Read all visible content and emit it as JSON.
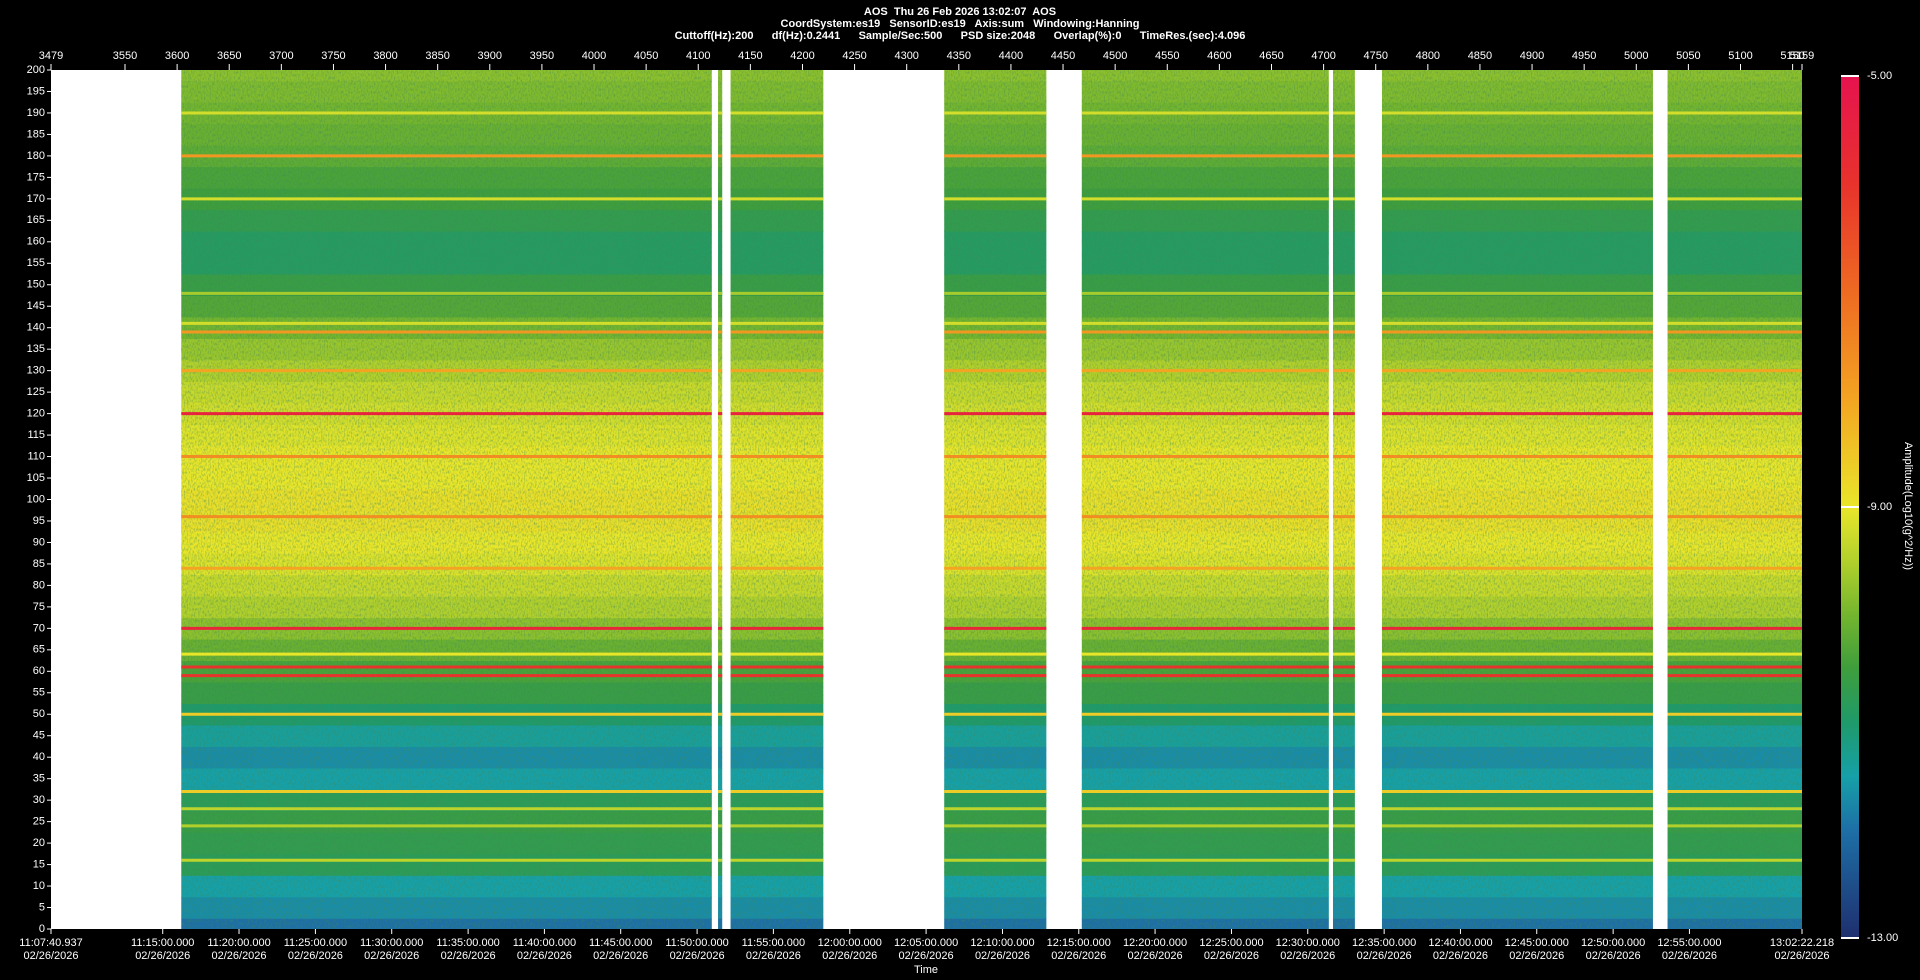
{
  "chart_data": {
    "type": "spectrogram",
    "title_lines": [
      "AOS  Thu 26 Feb 2026 13:02:07  AOS",
      "CoordSystem:es19   SensorID:es19   Axis:sum   Windowing:Hanning",
      "Cuttoff(Hz):200      df(Hz):0.2441      Sample/Sec:500      PSD size:2048      Overlap(%):0      TimeRes.(sec):4.096"
    ],
    "xlabel": "Time",
    "colorbar_label": "Amplitude(Log10(g^2/Hz))",
    "xlim": [
      3479,
      5159
    ],
    "xticks": [
      3479,
      3550,
      3600,
      3650,
      3700,
      3750,
      3800,
      3850,
      3900,
      3950,
      4000,
      4050,
      4100,
      4150,
      4200,
      4250,
      4300,
      4350,
      4400,
      4450,
      4500,
      4550,
      4600,
      4650,
      4700,
      4750,
      4800,
      4850,
      4900,
      4950,
      5000,
      5050,
      5100,
      5150,
      5159
    ],
    "x2ticks": [
      {
        "value": 3479,
        "label": "11:07:40.937"
      },
      {
        "value": 3586.2,
        "label": "11:15:00.000"
      },
      {
        "value": 3659.4,
        "label": "11:20:00.000"
      },
      {
        "value": 3732.7,
        "label": "11:25:00.000"
      },
      {
        "value": 3805.9,
        "label": "11:30:00.000"
      },
      {
        "value": 3879.2,
        "label": "11:35:00.000"
      },
      {
        "value": 3952.4,
        "label": "11:40:00.000"
      },
      {
        "value": 4025.6,
        "label": "11:45:00.000"
      },
      {
        "value": 4098.9,
        "label": "11:50:00.000"
      },
      {
        "value": 4172.1,
        "label": "11:55:00.000"
      },
      {
        "value": 4245.4,
        "label": "12:00:00.000"
      },
      {
        "value": 4318.6,
        "label": "12:05:00.000"
      },
      {
        "value": 4391.9,
        "label": "12:10:00.000"
      },
      {
        "value": 4465.1,
        "label": "12:15:00.000"
      },
      {
        "value": 4538.3,
        "label": "12:20:00.000"
      },
      {
        "value": 4611.6,
        "label": "12:25:00.000"
      },
      {
        "value": 4684.8,
        "label": "12:30:00.000"
      },
      {
        "value": 4758.1,
        "label": "12:35:00.000"
      },
      {
        "value": 4831.3,
        "label": "12:40:00.000"
      },
      {
        "value": 4904.5,
        "label": "12:45:00.000"
      },
      {
        "value": 4977.8,
        "label": "12:50:00.000"
      },
      {
        "value": 5051.0,
        "label": "12:55:00.000"
      },
      {
        "value": 5159,
        "label": "13:02:22.218"
      }
    ],
    "x2tick_dates": [
      "02/26/2026",
      "02/26/2026",
      "02/26/2026",
      "02/26/2026",
      "02/26/2026",
      "02/26/2026",
      "02/26/2026",
      "02/26/2026",
      "02/26/2026",
      "02/26/2026",
      "02/26/2026",
      "02/26/2026",
      "02/26/2026",
      "02/26/2026",
      "02/26/2026",
      "02/26/2026",
      "02/26/2026",
      "02/26/2026",
      "02/26/2026",
      "02/26/2026",
      "02/26/2026",
      "02/26/2026",
      "02/26/2026"
    ],
    "ylim": [
      0,
      200
    ],
    "yticks": [
      0,
      5,
      10,
      15,
      20,
      25,
      30,
      35,
      40,
      45,
      50,
      55,
      60,
      65,
      70,
      75,
      80,
      85,
      90,
      95,
      100,
      105,
      110,
      115,
      120,
      125,
      130,
      135,
      140,
      145,
      150,
      155,
      160,
      165,
      170,
      175,
      180,
      185,
      190,
      195,
      200
    ],
    "zlim": [
      -13,
      -5
    ],
    "zticks": [
      {
        "value": -5,
        "label": "-5.00"
      },
      {
        "value": -9,
        "label": "-9.00"
      },
      {
        "value": -13,
        "label": "-13.00"
      }
    ],
    "colormap": {
      "values": [
        -13,
        -12,
        -11.5,
        -11,
        -10.5,
        -10,
        -9.5,
        -9,
        -8,
        -7,
        -6,
        -5
      ],
      "colors": [
        "#1e2f6e",
        "#1d6fa6",
        "#16a0a8",
        "#1f9a6a",
        "#3e9e3c",
        "#74b52e",
        "#b2d02c",
        "#e9e62a",
        "#f3a422",
        "#ee6a22",
        "#e8322c",
        "#e6134f"
      ]
    },
    "segments": [
      [
        3604,
        4113
      ],
      [
        4119,
        4123
      ],
      [
        4131,
        4220
      ],
      [
        4336,
        4434
      ],
      [
        4468,
        4705
      ],
      [
        4709,
        4730
      ],
      [
        4756,
        5016
      ],
      [
        5030,
        5159
      ]
    ],
    "profile": {
      "frequency": [
        0,
        5,
        10,
        15,
        20,
        25,
        30,
        35,
        40,
        45,
        50,
        55,
        60,
        65,
        70,
        75,
        80,
        85,
        90,
        95,
        100,
        105,
        110,
        115,
        120,
        125,
        130,
        135,
        140,
        145,
        150,
        155,
        160,
        165,
        170,
        175,
        180,
        185,
        190,
        195,
        200
      ],
      "values": [
        -12.0,
        -11.7,
        -11.5,
        -10.8,
        -10.7,
        -10.6,
        -10.8,
        -11.5,
        -11.7,
        -11.4,
        -11.0,
        -10.6,
        -10.4,
        -10.1,
        -9.8,
        -9.5,
        -9.3,
        -9.1,
        -9.0,
        -8.9,
        -8.9,
        -9.0,
        -9.0,
        -9.1,
        -9.2,
        -9.3,
        -9.5,
        -9.7,
        -10.0,
        -10.3,
        -10.6,
        -10.9,
        -10.9,
        -10.7,
        -10.5,
        -10.4,
        -10.2,
        -10.1,
        -10.0,
        -9.9,
        -9.8
      ]
    },
    "tones": {
      "frequency": [
        190,
        180,
        170,
        148,
        141,
        139,
        130,
        120,
        110,
        96,
        84,
        70,
        64,
        61,
        59,
        50,
        32,
        28,
        24,
        16
      ],
      "values": [
        -9.2,
        -7.8,
        -9.2,
        -9.6,
        -9.2,
        -7.8,
        -8.0,
        -5.5,
        -7.6,
        -7.6,
        -8.0,
        -5.6,
        -9.0,
        -6.0,
        -6.0,
        -8.6,
        -8.6,
        -9.4,
        -9.5,
        -9.4
      ]
    }
  }
}
